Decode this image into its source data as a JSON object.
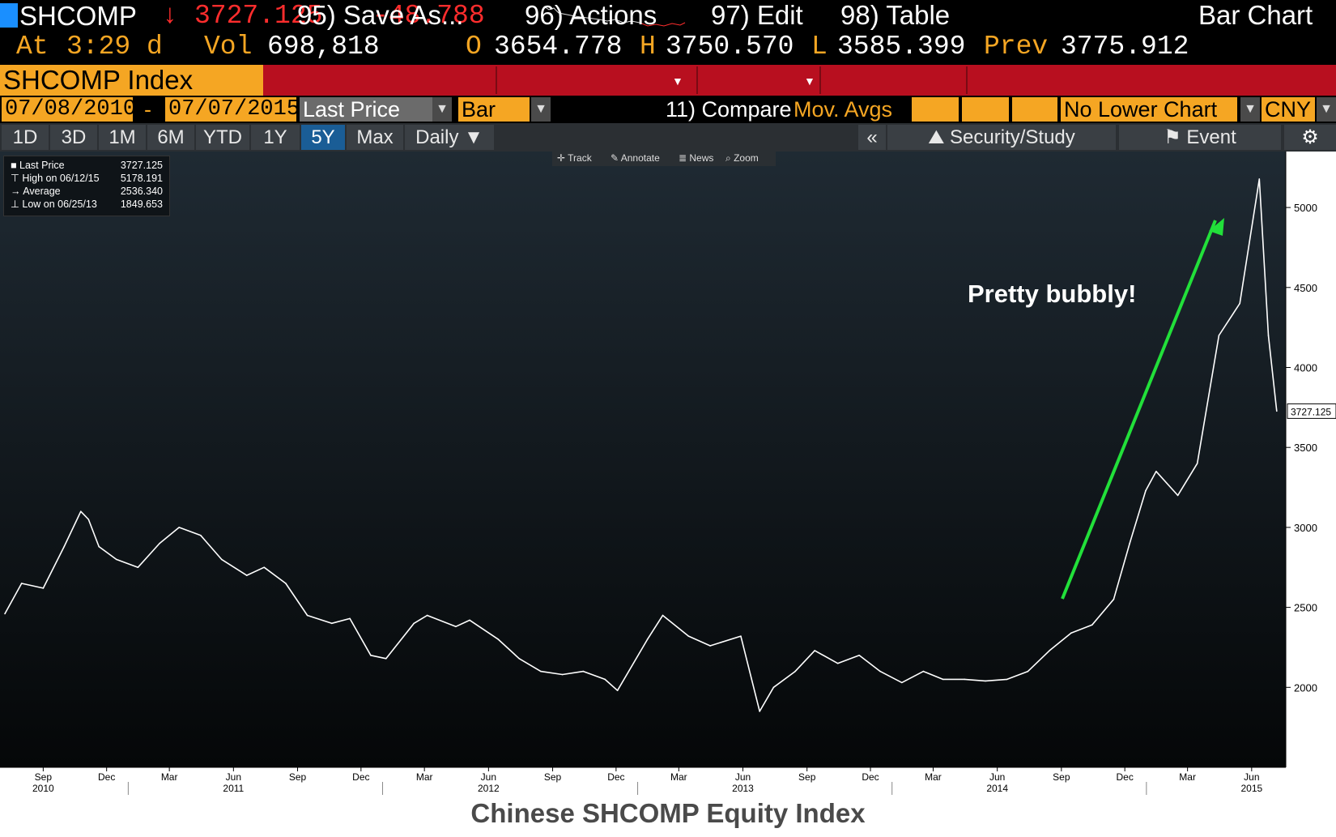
{
  "quote": {
    "ticker": "SHCOMP",
    "arrow": "↓",
    "last": "3727.125",
    "change": "-48.788",
    "at_label": "At",
    "time": "3:29 d",
    "vol_label": "Vol",
    "vol": "698,818",
    "open_label": "O",
    "open": "3654.778",
    "high_label": "H",
    "high": "3750.570",
    "low_label": "L",
    "low": "3585.399",
    "prev_label": "Prev",
    "prev": "3775.912"
  },
  "menu": {
    "security": "SHCOMP Index",
    "save_as": "95) Save As...",
    "actions": "96) Actions",
    "edit": "97) Edit",
    "table": "98) Table",
    "chart_type": "Bar Chart"
  },
  "controls": {
    "start_date": "07/08/2010",
    "dash": "-",
    "end_date": "07/07/2015",
    "field": "Last Price",
    "style": "Bar",
    "compare": "11) Compare",
    "mov_avgs": "Mov. Avgs",
    "lower_chart": "No Lower Chart",
    "currency": "CNY"
  },
  "tabs": [
    "1D",
    "3D",
    "1M",
    "6M",
    "YTD",
    "1Y",
    "5Y",
    "Max",
    "Daily ▼"
  ],
  "active_tab": "5Y",
  "right_tabs": {
    "collapse": "«",
    "security_study": "Security/Study",
    "event": "Event"
  },
  "tools": [
    "Track",
    "Annotate",
    "News",
    "Zoom"
  ],
  "legend": {
    "rows": [
      {
        "label": "Last Price",
        "value": "3727.125"
      },
      {
        "label": "High on 06/12/15",
        "value": "5178.191"
      },
      {
        "label": "Average",
        "value": "2536.340"
      },
      {
        "label": "Low on 06/25/13",
        "value": "1849.653"
      }
    ]
  },
  "annotation": "Pretty bubbly!",
  "caption": "Chinese SHCOMP Equity Index",
  "colors": {
    "orange": "#f5a623",
    "red_bar": "#b80f1f",
    "down_red": "#ff2d2d",
    "arrow_green": "#22e03a"
  },
  "chart_data": {
    "type": "line",
    "last_price_label": "3727.125",
    "ylim": [
      1500,
      5350
    ],
    "y_ticks": [
      2000,
      2500,
      3000,
      3500,
      4000,
      4500,
      5000
    ],
    "x_month_ticks": [
      "Sep",
      "Dec",
      "Mar",
      "Jun",
      "Sep",
      "Dec",
      "Mar",
      "Jun",
      "Sep",
      "Dec",
      "Mar",
      "Jun",
      "Sep",
      "Dec",
      "Mar",
      "Jun",
      "Sep",
      "Dec",
      "Mar",
      "Jun"
    ],
    "x_year_ticks": [
      "2010",
      "2011",
      "2012",
      "2013",
      "2014",
      "2015"
    ],
    "series": [
      {
        "x": [
          "2010-07-08",
          "2010-08-01",
          "2010-09-01",
          "2010-10-01",
          "2010-10-25",
          "2010-11-05",
          "2010-11-20",
          "2010-12-15",
          "2011-01-15",
          "2011-02-15",
          "2011-03-15",
          "2011-04-15",
          "2011-05-15",
          "2011-06-20",
          "2011-07-15",
          "2011-08-15",
          "2011-09-15",
          "2011-10-20",
          "2011-11-15",
          "2011-12-15",
          "2012-01-06",
          "2012-02-15",
          "2012-03-05",
          "2012-04-15",
          "2012-05-05",
          "2012-06-15",
          "2012-07-15",
          "2012-08-15",
          "2012-09-15",
          "2012-10-15",
          "2012-11-15",
          "2012-12-03",
          "2013-01-15",
          "2013-02-06",
          "2013-03-15",
          "2013-04-15",
          "2013-05-29",
          "2013-06-25",
          "2013-07-15",
          "2013-08-15",
          "2013-09-12",
          "2013-10-15",
          "2013-11-15",
          "2013-12-15",
          "2014-01-15",
          "2014-02-15",
          "2014-03-15",
          "2014-04-15",
          "2014-05-15",
          "2014-06-15",
          "2014-07-15",
          "2014-08-15",
          "2014-09-15",
          "2014-10-15",
          "2014-11-15",
          "2014-12-08",
          "2014-12-31",
          "2015-01-15",
          "2015-02-15",
          "2015-03-15",
          "2015-04-15",
          "2015-05-15",
          "2015-06-12",
          "2015-06-25",
          "2015-07-07"
        ],
        "y": [
          2460,
          2650,
          2620,
          2880,
          3100,
          3050,
          2880,
          2800,
          2750,
          2900,
          3000,
          2950,
          2800,
          2700,
          2750,
          2650,
          2450,
          2400,
          2430,
          2200,
          2180,
          2400,
          2450,
          2380,
          2420,
          2300,
          2180,
          2100,
          2080,
          2100,
          2050,
          1980,
          2300,
          2450,
          2320,
          2260,
          2320,
          1850,
          2000,
          2100,
          2230,
          2150,
          2200,
          2100,
          2030,
          2100,
          2050,
          2050,
          2040,
          2050,
          2100,
          2230,
          2340,
          2390,
          2550,
          2900,
          3230,
          3350,
          3200,
          3400,
          4200,
          4400,
          5178,
          4200,
          3727
        ]
      }
    ]
  }
}
